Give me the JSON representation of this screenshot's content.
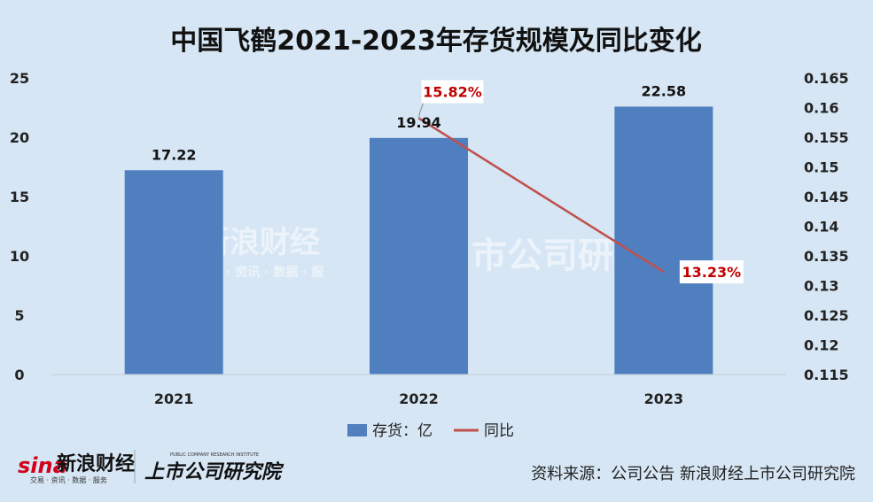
{
  "chart_data": {
    "type": "bar",
    "title": "中国飞鹤2021-2023年存货规模及同比变化",
    "categories": [
      "2021",
      "2022",
      "2023"
    ],
    "series": [
      {
        "name": "存货：亿",
        "type": "bar",
        "axis": "left",
        "values": [
          17.22,
          19.94,
          22.58
        ],
        "labels": [
          "17.22",
          "19.94",
          "22.58"
        ]
      },
      {
        "name": "同比",
        "type": "line",
        "axis": "right",
        "values": [
          null,
          0.1582,
          0.1323
        ],
        "labels": [
          "",
          "15.82%",
          "13.23%"
        ]
      }
    ],
    "y_left": {
      "min": 0,
      "max": 25,
      "ticks": [
        "0",
        "5",
        "10",
        "15",
        "20",
        "25"
      ]
    },
    "y_right": {
      "min": 0.115,
      "max": 0.165,
      "ticks": [
        "0.115",
        "0.12",
        "0.125",
        "0.13",
        "0.135",
        "0.14",
        "0.145",
        "0.15",
        "0.155",
        "0.16",
        "0.165"
      ]
    },
    "legend_position": "bottom",
    "colors": {
      "bar": "#4f7fbf",
      "line": "#c0504d",
      "background": "#d6e6f4",
      "rate_label": "#c00000"
    }
  },
  "footer": {
    "source": "资料来源：公司公告 新浪财经上市公司研究院",
    "logo_sina": "sina",
    "logo_sina_name": "新浪财经",
    "logo_sina_sub": "交易 · 资讯 · 数据 · 服务",
    "logo_institute": "上市公司研究院",
    "logo_institute_en": "PUBLIC COMPANY RESEARCH INSTITUTE"
  },
  "watermark": {
    "sina_name": "新浪财经",
    "sina_sub": "· 资讯 · 数据 · 服",
    "institute": "市公司研"
  }
}
